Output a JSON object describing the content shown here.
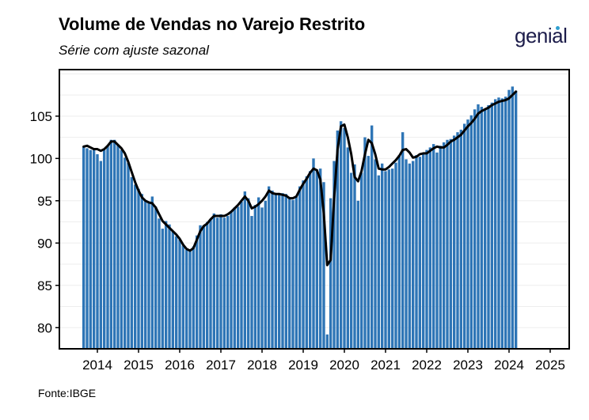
{
  "header": {
    "title": "Volume de Vendas no Varejo Restrito",
    "subtitle": "Série com ajuste sazonal",
    "logo_text": "genial"
  },
  "footer": {
    "source": "Fonte:IBGE"
  },
  "colors": {
    "bar": "#2e75b6",
    "line": "#000000",
    "frame": "#000000"
  },
  "chart_data": {
    "type": "bar",
    "title": "Volume de Vendas no Varejo Restrito",
    "subtitle": "Série com ajuste sazonal",
    "xlabel": "",
    "ylabel": "",
    "ylim": [
      77.5,
      110.5
    ],
    "y_ticks": [
      80,
      85,
      90,
      95,
      100,
      105
    ],
    "x_ticks": [
      "2014",
      "2015",
      "2016",
      "2017",
      "2018",
      "2019",
      "2020",
      "2021",
      "2022",
      "2023",
      "2024",
      "2025"
    ],
    "x_start": "2013-09",
    "grid": "horizontal light",
    "legend": "none",
    "series": [
      {
        "type": "bar",
        "values": [
          101.4,
          101.2,
          101.0,
          101.1,
          100.5,
          99.7,
          101.0,
          101.5,
          102.2,
          102.2,
          101.6,
          101.0,
          100.1,
          99.5,
          97.8,
          96.9,
          96.4,
          95.8,
          95.0,
          94.9,
          95.5,
          94.3,
          92.9,
          91.7,
          92.6,
          92.2,
          91.4,
          90.8,
          90.4,
          89.7,
          89.2,
          89.0,
          89.6,
          90.9,
          92.1,
          92.1,
          92.5,
          92.8,
          93.5,
          93.0,
          93.4,
          93.0,
          93.2,
          93.7,
          94.2,
          94.3,
          94.9,
          96.1,
          95.3,
          93.2,
          94.5,
          95.4,
          94.2,
          95.0,
          96.7,
          96.2,
          95.7,
          95.7,
          95.9,
          95.8,
          95.4,
          95.1,
          95.5,
          96.7,
          97.4,
          97.9,
          98.5,
          100.0,
          98.7,
          98.8,
          97.2,
          79.2,
          95.3,
          99.7,
          103.3,
          104.4,
          103.6,
          101.3,
          98.3,
          99.3,
          95.0,
          98.3,
          102.5,
          100.3,
          103.9,
          99.9,
          98.0,
          99.4,
          98.5,
          98.7,
          98.8,
          99.5,
          100.4,
          103.1,
          99.9,
          99.4,
          99.7,
          100.4,
          100.2,
          100.5,
          101.0,
          101.3,
          101.7,
          100.7,
          101.5,
          101.9,
          102.2,
          102.3,
          102.7,
          103.1,
          103.4,
          104.1,
          104.6,
          105.1,
          105.8,
          106.4,
          106.1,
          105.9,
          106.3,
          106.6,
          107.0,
          107.2,
          107.1,
          107.3,
          108.1,
          108.5,
          108.0
        ]
      },
      {
        "type": "line",
        "values": [
          101.4,
          101.5,
          101.3,
          101.1,
          101.1,
          100.9,
          101.1,
          101.5,
          102.0,
          102.0,
          101.6,
          101.2,
          100.6,
          99.6,
          98.4,
          97.2,
          96.2,
          95.4,
          95.0,
          94.8,
          94.7,
          94.2,
          93.4,
          92.6,
          92.2,
          91.8,
          91.4,
          91.0,
          90.5,
          89.8,
          89.3,
          89.1,
          89.4,
          90.4,
          91.4,
          92.0,
          92.3,
          92.8,
          93.2,
          93.2,
          93.2,
          93.2,
          93.4,
          93.7,
          94.1,
          94.5,
          95.0,
          95.5,
          95.0,
          94.1,
          94.3,
          94.6,
          95.0,
          95.5,
          96.2,
          95.9,
          95.8,
          95.8,
          95.7,
          95.6,
          95.3,
          95.3,
          95.5,
          96.3,
          97.0,
          97.6,
          98.3,
          98.8,
          98.6,
          97.5,
          93.5,
          87.4,
          88.0,
          95.2,
          101.0,
          103.8,
          104.0,
          102.5,
          100.5,
          97.8,
          97.3,
          98.5,
          100.5,
          102.2,
          101.8,
          100.5,
          98.8,
          98.7,
          98.7,
          99.0,
          99.4,
          99.8,
          100.3,
          101.0,
          101.1,
          100.7,
          100.1,
          100.2,
          100.5,
          100.6,
          100.6,
          100.9,
          101.2,
          101.4,
          101.3,
          101.3,
          101.6,
          102.0,
          102.2,
          102.5,
          102.8,
          103.3,
          103.8,
          104.2,
          104.7,
          105.3,
          105.6,
          105.8,
          106.0,
          106.3,
          106.5,
          106.7,
          106.8,
          106.9,
          107.1,
          107.5,
          107.9
        ]
      }
    ]
  }
}
